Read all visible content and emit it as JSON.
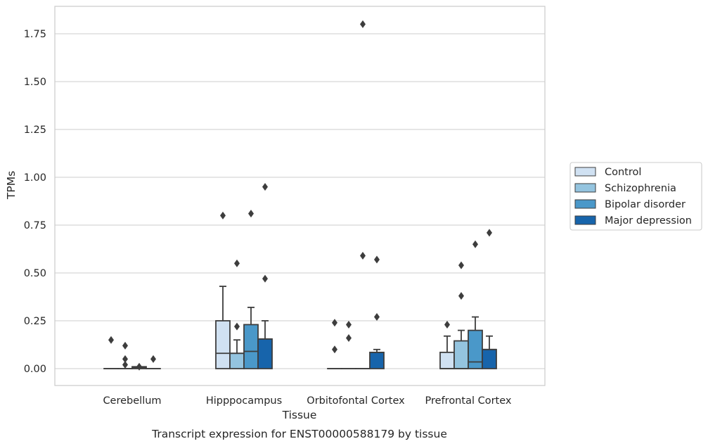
{
  "chart_data": {
    "type": "box",
    "title": "Transcript expression for ENST00000588179 by tissue",
    "xlabel": "Tissue",
    "ylabel": "TPMs",
    "ylim": [
      -0.09,
      1.89
    ],
    "yticks": [
      0.0,
      0.25,
      0.5,
      0.75,
      1.0,
      1.25,
      1.5,
      1.75
    ],
    "ytick_labels": [
      "0.00",
      "0.25",
      "0.50",
      "0.75",
      "1.00",
      "1.25",
      "1.50",
      "1.75"
    ],
    "grid": true,
    "legend_position": "right",
    "categories": [
      "Cerebellum",
      "Hipppocampus",
      "Orbitofontal Cortex",
      "Prefrontal Cortex"
    ],
    "series": [
      {
        "name": "Control",
        "color": "#d0e1f2",
        "boxes": [
          {
            "whislo": 0.0,
            "q1": 0.0,
            "med": 0.0,
            "q3": 0.0,
            "whishi": 0.0,
            "fliers": [
              0.15
            ]
          },
          {
            "whislo": 0.0,
            "q1": 0.0,
            "med": 0.08,
            "q3": 0.25,
            "whishi": 0.43,
            "fliers": [
              0.8
            ]
          },
          {
            "whislo": 0.0,
            "q1": 0.0,
            "med": 0.0,
            "q3": 0.0,
            "whishi": 0.0,
            "fliers": [
              0.24,
              0.1
            ]
          },
          {
            "whislo": 0.0,
            "q1": 0.0,
            "med": 0.0,
            "q3": 0.085,
            "whishi": 0.17,
            "fliers": [
              0.23
            ]
          }
        ]
      },
      {
        "name": "Schizophrenia",
        "color": "#94c4df",
        "boxes": [
          {
            "whislo": 0.0,
            "q1": 0.0,
            "med": 0.0,
            "q3": 0.0,
            "whishi": 0.0,
            "fliers": [
              0.12,
              0.05,
              0.02
            ]
          },
          {
            "whislo": 0.0,
            "q1": 0.0,
            "med": 0.08,
            "q3": 0.08,
            "whishi": 0.15,
            "fliers": [
              0.22,
              0.55
            ]
          },
          {
            "whislo": 0.0,
            "q1": 0.0,
            "med": 0.0,
            "q3": 0.0,
            "whishi": 0.0,
            "fliers": [
              0.23,
              0.16
            ]
          },
          {
            "whislo": 0.0,
            "q1": 0.0,
            "med": 0.0,
            "q3": 0.145,
            "whishi": 0.2,
            "fliers": [
              0.38,
              0.54
            ]
          }
        ]
      },
      {
        "name": "Bipolar disorder",
        "color": "#4a98c9",
        "boxes": [
          {
            "whislo": 0.0,
            "q1": 0.0,
            "med": 0.005,
            "q3": 0.01,
            "whishi": 0.01,
            "fliers": [
              0.01
            ]
          },
          {
            "whislo": 0.0,
            "q1": 0.0,
            "med": 0.09,
            "q3": 0.23,
            "whishi": 0.32,
            "fliers": [
              0.81
            ]
          },
          {
            "whislo": 0.0,
            "q1": 0.0,
            "med": 0.0,
            "q3": 0.0,
            "whishi": 0.0,
            "fliers": [
              0.59,
              1.8
            ]
          },
          {
            "whislo": 0.0,
            "q1": 0.0,
            "med": 0.035,
            "q3": 0.2,
            "whishi": 0.27,
            "fliers": [
              0.65
            ]
          }
        ]
      },
      {
        "name": "Major depression",
        "color": "#1764ab",
        "boxes": [
          {
            "whislo": 0.0,
            "q1": 0.0,
            "med": 0.0,
            "q3": 0.0,
            "whishi": 0.0,
            "fliers": [
              0.05
            ]
          },
          {
            "whislo": 0.0,
            "q1": 0.0,
            "med": 0.155,
            "q3": 0.155,
            "whishi": 0.25,
            "fliers": [
              0.47,
              0.95
            ]
          },
          {
            "whislo": 0.0,
            "q1": 0.0,
            "med": 0.085,
            "q3": 0.085,
            "whishi": 0.1,
            "fliers": [
              0.27,
              0.57
            ]
          },
          {
            "whislo": 0.0,
            "q1": 0.0,
            "med": 0.1,
            "q3": 0.1,
            "whishi": 0.17,
            "fliers": [
              0.71
            ]
          }
        ]
      }
    ]
  }
}
